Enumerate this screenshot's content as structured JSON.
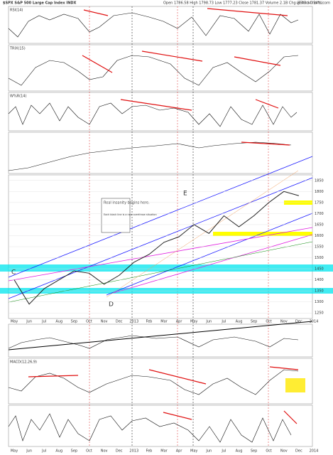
{
  "chart_data": {
    "type": "line",
    "title": "$SPX S&P 500 Large Cap Index INDX",
    "subtitle": "Open 1786.58 High 1798.73 Low 1777.23 Close 1781.37 Volume 2.1B Chg -6.03 (-0.34%)",
    "source": "@StockCharts.com",
    "panels": [
      "RSI(14)",
      "TRIX(15)",
      "W%R(14)",
      "MACD(12,26,9)"
    ],
    "annotations": [
      "Real insanity begins here.",
      "Each black line is a new overthrow situation",
      "C",
      "D",
      "E"
    ],
    "categories": [
      "May",
      "Jun",
      "Jul",
      "Aug",
      "Sep",
      "Oct",
      "Nov",
      "Dec",
      "2013",
      "Feb",
      "Mar",
      "Apr",
      "May",
      "Jun",
      "Jul",
      "Aug",
      "Sep",
      "Oct",
      "Nov",
      "Dec",
      "2014"
    ],
    "series": [
      {
        "name": "$SPX",
        "color": "#222222",
        "values": [
          1400,
          1290,
          1360,
          1400,
          1440,
          1430,
          1380,
          1420,
          1480,
          1515,
          1570,
          1595,
          1650,
          1610,
          1690,
          1640,
          1690,
          1750,
          1800,
          1781,
          null
        ]
      }
    ],
    "ylim": [
      1225,
      1875
    ],
    "yticks": [
      1250,
      1300,
      1350,
      1400,
      1450,
      1500,
      1550,
      1600,
      1650,
      1700,
      1750,
      1800,
      1850
    ]
  }
}
